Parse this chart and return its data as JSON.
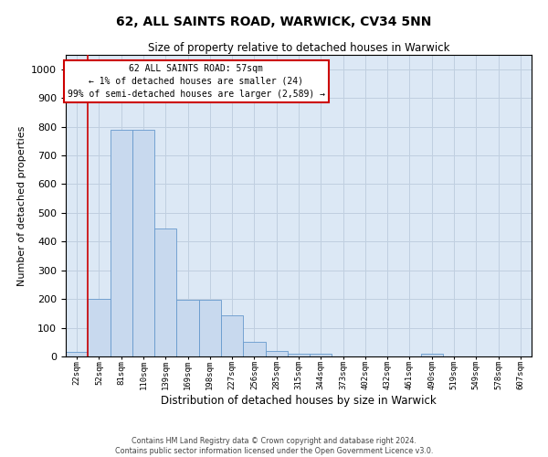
{
  "title": "62, ALL SAINTS ROAD, WARWICK, CV34 5NN",
  "subtitle": "Size of property relative to detached houses in Warwick",
  "xlabel": "Distribution of detached houses by size in Warwick",
  "ylabel": "Number of detached properties",
  "bar_color": "#c8d9ee",
  "bar_edge_color": "#6699cc",
  "grid_color": "#c0cfe0",
  "background_color": "#dce8f5",
  "bin_labels": [
    "22sqm",
    "52sqm",
    "81sqm",
    "110sqm",
    "139sqm",
    "169sqm",
    "198sqm",
    "227sqm",
    "256sqm",
    "285sqm",
    "315sqm",
    "344sqm",
    "373sqm",
    "402sqm",
    "432sqm",
    "461sqm",
    "490sqm",
    "519sqm",
    "549sqm",
    "578sqm",
    "607sqm"
  ],
  "bar_values": [
    15,
    200,
    790,
    790,
    445,
    197,
    197,
    142,
    50,
    18,
    10,
    10,
    0,
    0,
    0,
    0,
    10,
    0,
    0,
    0,
    0
  ],
  "ylim": [
    0,
    1050
  ],
  "yticks": [
    0,
    100,
    200,
    300,
    400,
    500,
    600,
    700,
    800,
    900,
    1000
  ],
  "vline_x": 0.5,
  "vline_color": "#cc0000",
  "annotation_text": "62 ALL SAINTS ROAD: 57sqm\n← 1% of detached houses are smaller (24)\n99% of semi-detached houses are larger (2,589) →",
  "annotation_box_color": "#ffffff",
  "annotation_box_edge": "#cc0000",
  "footer_line1": "Contains HM Land Registry data © Crown copyright and database right 2024.",
  "footer_line2": "Contains public sector information licensed under the Open Government Licence v3.0."
}
